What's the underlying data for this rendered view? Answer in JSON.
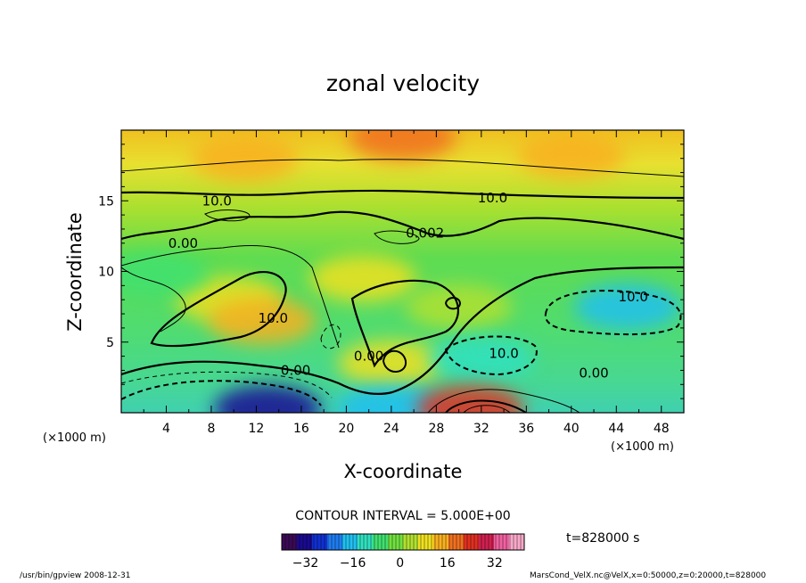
{
  "chart_data": {
    "type": "heatmap",
    "title": "zonal velocity",
    "xlabel": "X-coordinate",
    "ylabel": "Z-coordinate",
    "x_unit_left": "(×1000 m)",
    "x_unit_right": "(×1000 m)",
    "xlim": [
      0,
      50
    ],
    "ylim": [
      0,
      20
    ],
    "x_ticks": [
      4,
      8,
      12,
      16,
      20,
      24,
      28,
      32,
      36,
      40,
      44,
      48
    ],
    "y_ticks": [
      5,
      10,
      15
    ],
    "contour_interval_text": "CONTOUR INTERVAL = 5.000E+00",
    "colorbar": {
      "min": -40,
      "max": 42,
      "ticks": [
        -32,
        -16,
        0,
        16,
        32
      ],
      "colors": [
        "#3a0a55",
        "#1a0a90",
        "#1030d0",
        "#1e7cf0",
        "#20c0f0",
        "#30e0c0",
        "#40e070",
        "#70e040",
        "#b0e030",
        "#f0e020",
        "#f8b020",
        "#f07020",
        "#e03020",
        "#d02050",
        "#f060a0",
        "#f8a8c8"
      ]
    },
    "time_label": "t=828000 s",
    "contour_labels": [
      {
        "x": 8.5,
        "z": 15.0,
        "text": "10.0"
      },
      {
        "x": 33.0,
        "z": 15.2,
        "text": "10.0"
      },
      {
        "x": 5.5,
        "z": 12.0,
        "text": "0.00"
      },
      {
        "x": 27.0,
        "z": 12.7,
        "text": "0.002"
      },
      {
        "x": 13.5,
        "z": 6.7,
        "text": "10.0"
      },
      {
        "x": 45.5,
        "z": 8.2,
        "text": "10.0"
      },
      {
        "x": 22.0,
        "z": 4.0,
        "text": "0.00"
      },
      {
        "x": 34.0,
        "z": 4.2,
        "text": "10.0"
      },
      {
        "x": 15.5,
        "z": 3.0,
        "text": "0.00"
      },
      {
        "x": 42.0,
        "z": 2.8,
        "text": "0.00"
      }
    ],
    "features": [
      {
        "x": 25.0,
        "z": 19.5,
        "value": 20
      },
      {
        "x": 11.0,
        "z": 18.0,
        "value": 12
      },
      {
        "x": 40.0,
        "z": 18.2,
        "value": 12
      },
      {
        "x": 9.5,
        "z": 8.0,
        "value": 8
      },
      {
        "x": 12.5,
        "z": 6.5,
        "value": 12
      },
      {
        "x": 21.5,
        "z": 9.5,
        "value": 8
      },
      {
        "x": 24.0,
        "z": 3.5,
        "value": 10
      },
      {
        "x": 30.0,
        "z": 7.5,
        "value": 6
      },
      {
        "x": 45.0,
        "z": 7.5,
        "value": -16
      },
      {
        "x": 32.0,
        "z": 3.8,
        "value": -12
      },
      {
        "x": 3.0,
        "z": 9.8,
        "value": -6
      },
      {
        "x": 13.0,
        "z": 0.3,
        "value": -32
      },
      {
        "x": 24.0,
        "z": 0.3,
        "value": -18
      },
      {
        "x": 31.0,
        "z": 0.3,
        "value": 24
      }
    ]
  },
  "footer": {
    "left": "/usr/bin/gpview   2008-12-31",
    "right": "MarsCond_VelX.nc@VelX,x=0:50000,z=0:20000,t=828000"
  }
}
